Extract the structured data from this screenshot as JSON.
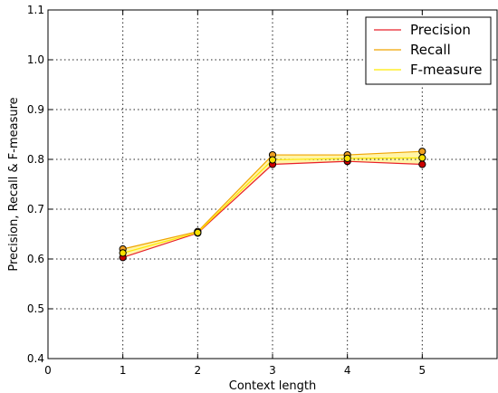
{
  "chart_data": {
    "type": "line",
    "title": "",
    "xlabel": "Context length",
    "ylabel": "Precision, Recall & F-measure",
    "xlim": [
      0,
      6
    ],
    "ylim": [
      0.4,
      1.1
    ],
    "xticks": [
      0,
      1,
      2,
      3,
      4,
      5
    ],
    "xtick_labels": [
      "0",
      "1",
      "2",
      "3",
      "4",
      "5"
    ],
    "yticks": [
      0.4,
      0.5,
      0.6,
      0.7,
      0.8,
      0.9,
      1.0,
      1.1
    ],
    "ytick_labels": [
      "0.4",
      "0.5",
      "0.6",
      "0.7",
      "0.8",
      "0.9",
      "1.0",
      "1.1"
    ],
    "grid": true,
    "legend_position": "top-right",
    "x": [
      1,
      2,
      3,
      4,
      5
    ],
    "series": [
      {
        "name": "Precision",
        "values": [
          0.603,
          0.652,
          0.79,
          0.796,
          0.79
        ],
        "color": "#e8202a",
        "marker_color": "#cc0000"
      },
      {
        "name": "Recall",
        "values": [
          0.62,
          0.655,
          0.809,
          0.809,
          0.816
        ],
        "color": "#f0a400",
        "marker_color": "#f0a020"
      },
      {
        "name": "F-measure",
        "values": [
          0.612,
          0.653,
          0.799,
          0.802,
          0.803
        ],
        "color": "#ffe900",
        "marker_color": "#f8e000"
      }
    ],
    "fill_between": {
      "lower": "Precision",
      "upper": "Recall",
      "color": "#fff4a8"
    }
  }
}
